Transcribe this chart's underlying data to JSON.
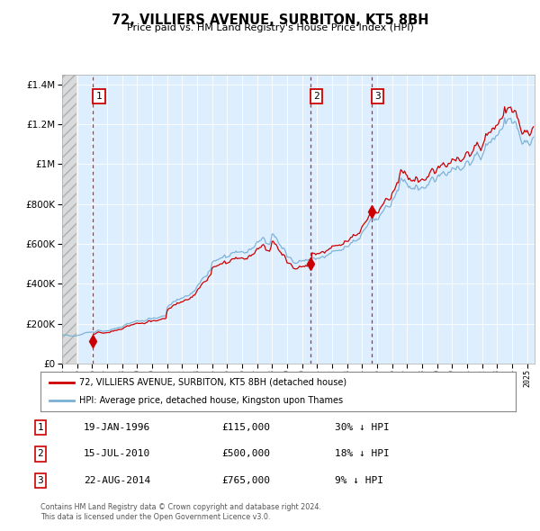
{
  "title": "72, VILLIERS AVENUE, SURBITON, KT5 8BH",
  "subtitle": "Price paid vs. HM Land Registry's House Price Index (HPI)",
  "transactions": [
    {
      "num": 1,
      "date": "19-JAN-1996",
      "price": 115000,
      "hpi_diff": "30% ↓ HPI",
      "year": 1996.05
    },
    {
      "num": 2,
      "date": "15-JUL-2010",
      "price": 500000,
      "hpi_diff": "18% ↓ HPI",
      "year": 2010.54
    },
    {
      "num": 3,
      "date": "22-AUG-2014",
      "price": 765000,
      "hpi_diff": "9% ↓ HPI",
      "year": 2014.64
    }
  ],
  "legend_line1": "72, VILLIERS AVENUE, SURBITON, KT5 8BH (detached house)",
  "legend_line2": "HPI: Average price, detached house, Kingston upon Thames",
  "footer1": "Contains HM Land Registry data © Crown copyright and database right 2024.",
  "footer2": "This data is licensed under the Open Government Licence v3.0.",
  "red_color": "#cc0000",
  "blue_color": "#7ab0d4",
  "background_color": "#ddeeff",
  "ylim": [
    0,
    1450000
  ],
  "xlim_start": 1994.0,
  "xlim_end": 2025.5
}
